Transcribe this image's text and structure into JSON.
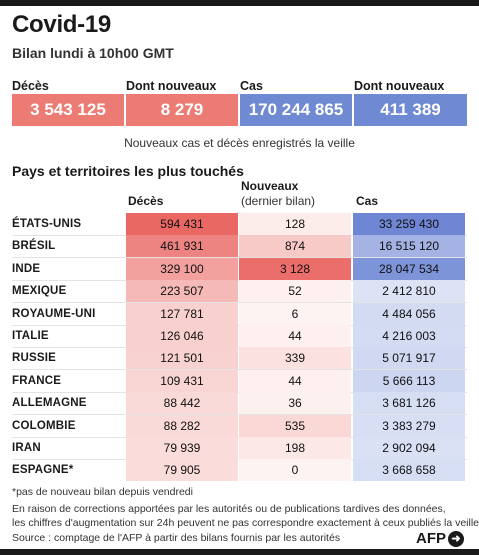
{
  "title": "Covid-19",
  "subtitle": "Bilan lundi à 10h00 GMT",
  "kpis": [
    {
      "label": "Décès",
      "value": "3 543 125"
    },
    {
      "label": "Dont nouveaux",
      "value": "8 279"
    },
    {
      "label": "Cas",
      "value": "170 244 865"
    },
    {
      "label": "Dont nouveaux",
      "value": "411 389"
    }
  ],
  "note": "Nouveaux cas et décès enregistrés la veille",
  "section_title": "Pays et territoires les plus touchés",
  "columns": {
    "deaths": "Décès",
    "new_line1": "Nouveaux",
    "new_line2": "(dernier bilan)",
    "cases": "Cas"
  },
  "colors": {
    "red_accent": "#e25a55",
    "blue_accent": "#5b7bd0",
    "bar": "#1a1a1a"
  },
  "chart_data": {
    "type": "table",
    "columns": [
      "Décès",
      "Nouveaux (dernier bilan)",
      "Cas"
    ],
    "rows": [
      {
        "country": "ÉTATS-UNIS",
        "deaths": "594 431",
        "new": "128",
        "cases": "33 259 430",
        "deaths_n": 594431,
        "new_n": 128,
        "cases_n": 33259430
      },
      {
        "country": "BRÉSIL",
        "deaths": "461 931",
        "new": "874",
        "cases": "16 515 120",
        "deaths_n": 461931,
        "new_n": 874,
        "cases_n": 16515120
      },
      {
        "country": "INDE",
        "deaths": "329 100",
        "new": "3 128",
        "cases": "28 047 534",
        "deaths_n": 329100,
        "new_n": 3128,
        "cases_n": 28047534
      },
      {
        "country": "MEXIQUE",
        "deaths": "223 507",
        "new": "52",
        "cases": "2 412 810",
        "deaths_n": 223507,
        "new_n": 52,
        "cases_n": 2412810
      },
      {
        "country": "ROYAUME-UNI",
        "deaths": "127 781",
        "new": "6",
        "cases": "4 484 056",
        "deaths_n": 127781,
        "new_n": 6,
        "cases_n": 4484056
      },
      {
        "country": "ITALIE",
        "deaths": "126 046",
        "new": "44",
        "cases": "4 216 003",
        "deaths_n": 126046,
        "new_n": 44,
        "cases_n": 4216003
      },
      {
        "country": "RUSSIE",
        "deaths": "121 501",
        "new": "339",
        "cases": "5 071 917",
        "deaths_n": 121501,
        "new_n": 339,
        "cases_n": 5071917
      },
      {
        "country": "FRANCE",
        "deaths": "109 431",
        "new": "44",
        "cases": "5 666 113",
        "deaths_n": 109431,
        "new_n": 44,
        "cases_n": 5666113
      },
      {
        "country": "ALLEMAGNE",
        "deaths": "88 442",
        "new": "36",
        "cases": "3 681 126",
        "deaths_n": 88442,
        "new_n": 36,
        "cases_n": 3681126
      },
      {
        "country": "COLOMBIE",
        "deaths": "88 282",
        "new": "535",
        "cases": "3 383 279",
        "deaths_n": 88282,
        "new_n": 535,
        "cases_n": 3383279
      },
      {
        "country": "IRAN",
        "deaths": "79 939",
        "new": "198",
        "cases": "2 902 094",
        "deaths_n": 79939,
        "new_n": 198,
        "cases_n": 2902094
      },
      {
        "country": "ESPAGNE*",
        "deaths": "79 905",
        "new": "0",
        "cases": "3 668 658",
        "deaths_n": 79905,
        "new_n": 0,
        "cases_n": 3668658
      }
    ]
  },
  "footnotes": [
    "*pas de nouveau bilan depuis vendredi",
    "En raison de corrections apportées par les autorités ou de publications tardives des données,",
    "les chiffres d'augmentation sur 24h peuvent ne pas correspondre exactement à ceux publiés la veille",
    "Source : comptage de l'AFP à partir des bilans fournis par les autorités"
  ],
  "logo": "AFP"
}
